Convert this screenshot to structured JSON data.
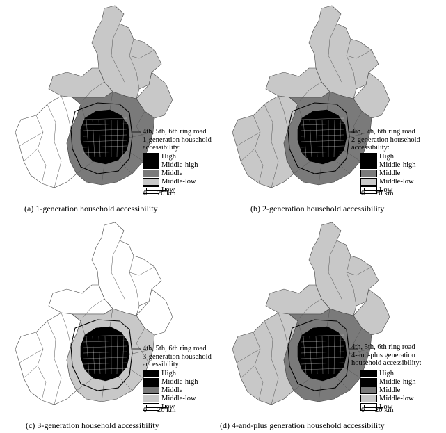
{
  "common": {
    "ring_road_label": "4th, 5th, 6th ring road",
    "legend_classes": [
      {
        "label": "High",
        "color": "#000000"
      },
      {
        "label": "Middle-high",
        "color": "#000000"
      },
      {
        "label": "Middle",
        "color": "#7a7a7a"
      },
      {
        "label": "Middle-low",
        "color": "#c8c8c8"
      },
      {
        "label": "Low",
        "color": "#ffffff"
      }
    ],
    "scale_zero": "0",
    "scale_label": "20 km"
  },
  "panels": [
    {
      "legend_title": "1-generation household\naccessibility:",
      "caption": "(a) 1-generation household accessibility",
      "north_fill": "#c8c8c8",
      "west_fill": "#ffffff",
      "ring_fill": "#7a7a7a",
      "core_fill": "#000000"
    },
    {
      "legend_title": "2-generation household\naccessibility:",
      "caption": "(b) 2-generation household accessibility",
      "north_fill": "#c8c8c8",
      "west_fill": "#c8c8c8",
      "ring_fill": "#7a7a7a",
      "core_fill": "#000000"
    },
    {
      "legend_title": "3-generation household\naccessibility:",
      "caption": "(c) 3-generation household accessibility",
      "north_fill": "#ffffff",
      "west_fill": "#ffffff",
      "ring_fill": "#c8c8c8",
      "core_fill": "#000000"
    },
    {
      "legend_title": "4-and-plus generation\nhousehold accessibility:",
      "caption": "(d) 4-and-plus generation household accessibility",
      "north_fill": "#c8c8c8",
      "west_fill": "#c8c8c8",
      "ring_fill": "#7a7a7a",
      "core_fill": "#000000"
    }
  ]
}
